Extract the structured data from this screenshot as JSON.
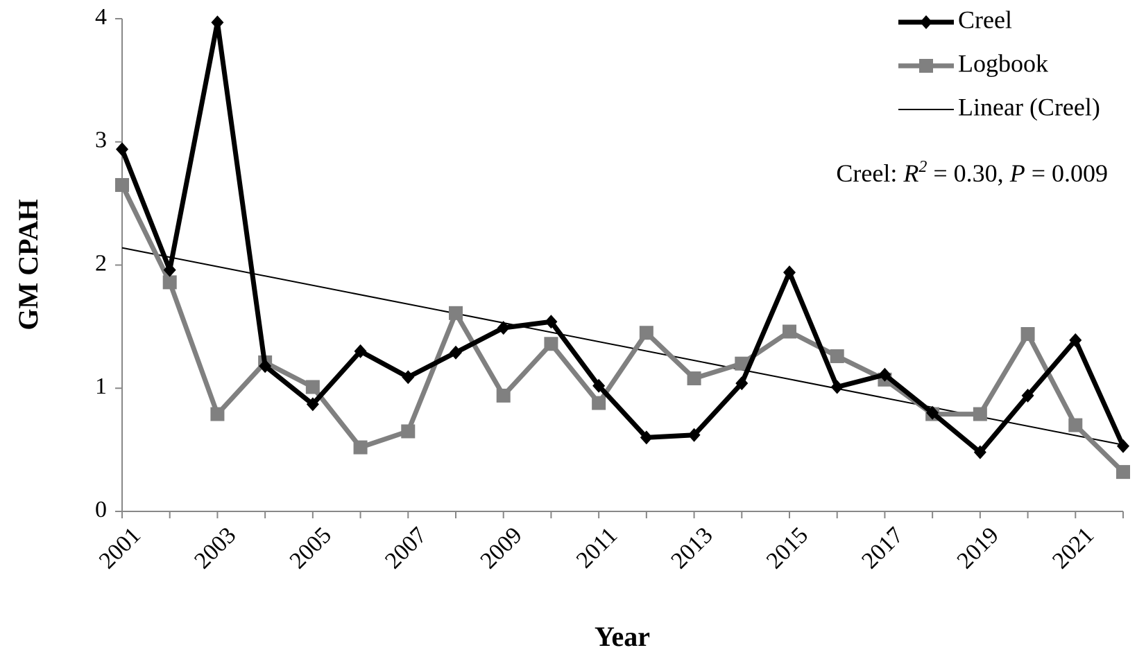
{
  "chart_data": {
    "type": "line",
    "y_label": "GM CPAH",
    "x_label": "Year",
    "x": [
      2001,
      2002,
      2003,
      2004,
      2005,
      2006,
      2007,
      2008,
      2009,
      2010,
      2011,
      2012,
      2013,
      2014,
      2015,
      2016,
      2017,
      2018,
      2019,
      2020,
      2021,
      2022
    ],
    "xlim": [
      2001,
      2022
    ],
    "xticks": [
      2001,
      2003,
      2005,
      2007,
      2009,
      2011,
      2013,
      2015,
      2017,
      2019,
      2021
    ],
    "ylim": [
      0,
      4
    ],
    "yticks": [
      0,
      1,
      2,
      3,
      4
    ],
    "series": [
      {
        "name": "Creel",
        "color": "#000000",
        "marker": "diamond",
        "values": [
          2.94,
          1.96,
          3.97,
          1.18,
          0.87,
          1.3,
          1.09,
          1.29,
          1.49,
          1.54,
          1.02,
          0.6,
          0.62,
          1.04,
          1.94,
          1.01,
          1.11,
          0.8,
          0.48,
          0.94,
          1.39,
          0.53
        ]
      },
      {
        "name": "Logbook",
        "color": "#808080",
        "marker": "square",
        "values": [
          2.65,
          1.86,
          0.79,
          1.21,
          1.01,
          0.52,
          0.65,
          1.61,
          0.94,
          1.36,
          0.88,
          1.45,
          1.08,
          1.2,
          1.46,
          1.26,
          1.07,
          0.79,
          0.79,
          1.44,
          0.7,
          0.32
        ]
      }
    ],
    "trendline": {
      "name": "Linear (Creel)",
      "color": "#000000",
      "start": 2.14,
      "end": 0.54
    },
    "annotation": [
      "Creel: ",
      "R",
      "2",
      " = 0.30, ",
      "P",
      " = 0.009"
    ],
    "legend": "top-right"
  }
}
